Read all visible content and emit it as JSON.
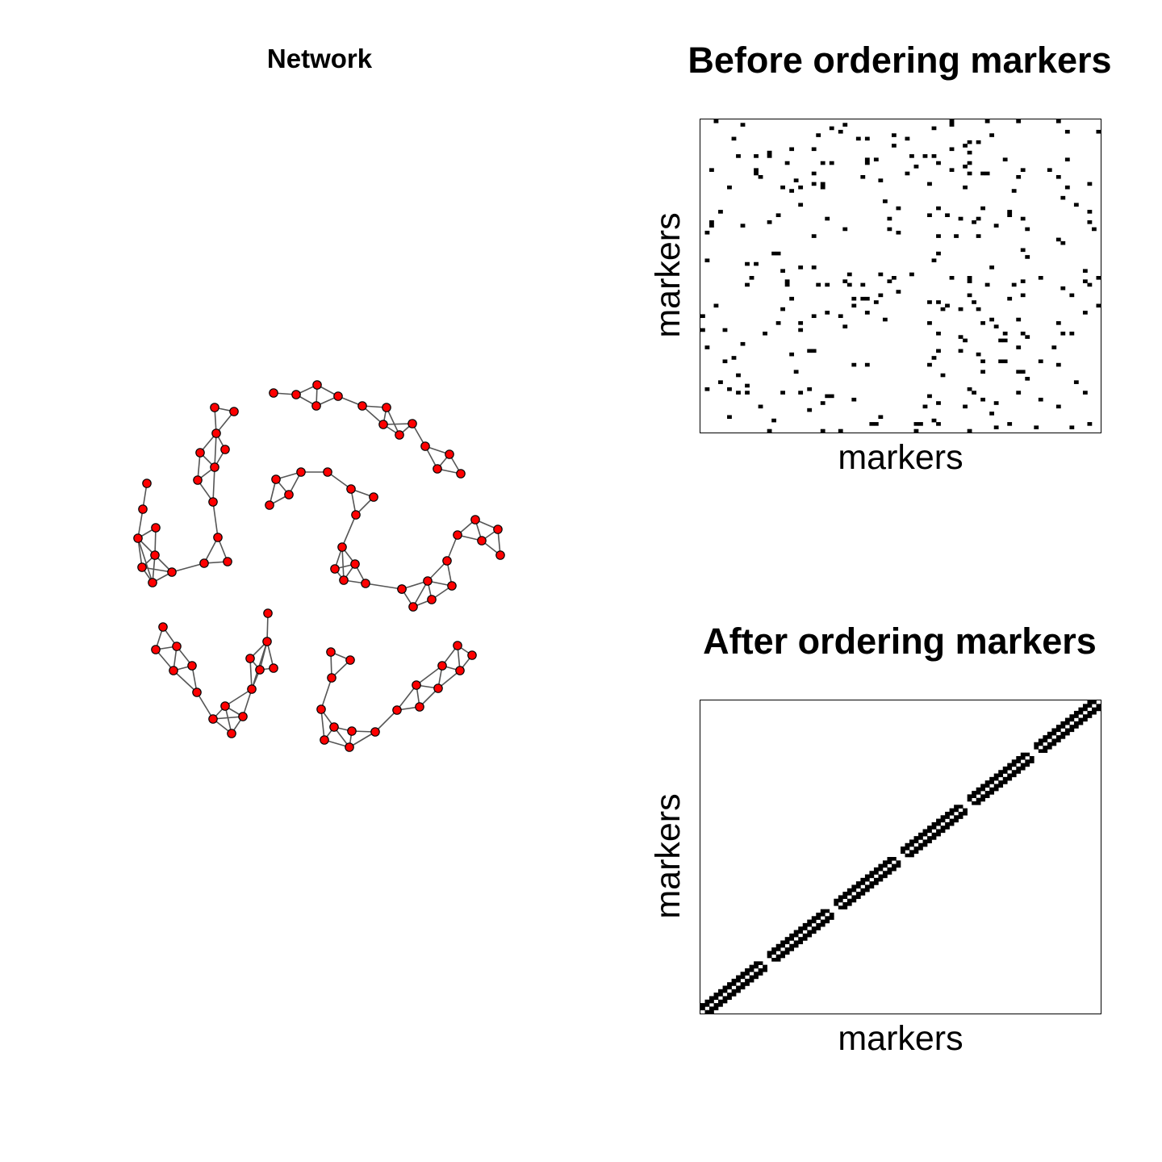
{
  "chart_data": [
    {
      "type": "network",
      "title": "Network",
      "node_color": "#ff0000",
      "edge_color": "#555555",
      "components": 6,
      "nodes_per_component": 15
    },
    {
      "type": "heatmap",
      "title": "Before ordering markers",
      "xlabel": "markers",
      "ylabel": "markers",
      "grid_size": 90,
      "pattern": "scattered",
      "colors": {
        "filled": "#000000",
        "empty": "#ffffff"
      }
    },
    {
      "type": "heatmap",
      "title": "After ordering markers",
      "xlabel": "markers",
      "ylabel": "markers",
      "grid_size": 90,
      "pattern": "diagonal band",
      "colors": {
        "filled": "#000000",
        "empty": "#ffffff"
      }
    }
  ]
}
